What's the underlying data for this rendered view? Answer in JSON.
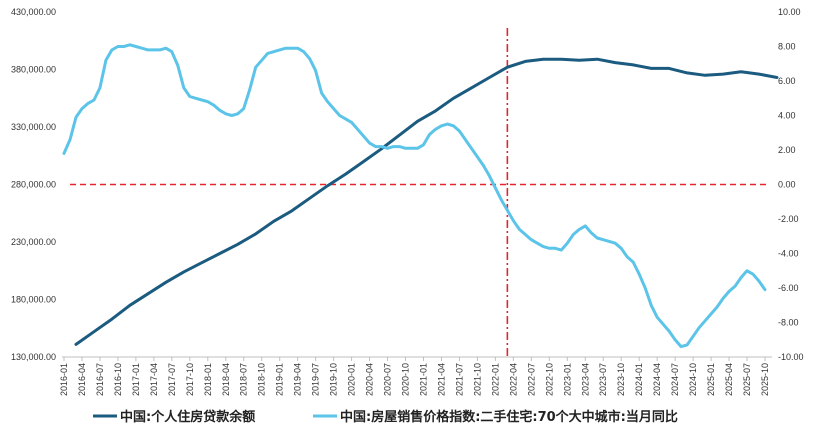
{
  "chart_data": {
    "type": "line",
    "title": "",
    "xlabel": "",
    "ylabel_left": "",
    "ylabel_right": "",
    "ylim_left": [
      130000,
      430000
    ],
    "ylim_right": [
      -10,
      10
    ],
    "left_ticks": [
      "130,000.00",
      "180,000.00",
      "230,000.00",
      "280,000.00",
      "330,000.00",
      "380,000.00",
      "430,000.00"
    ],
    "right_ticks": [
      "-10.00",
      "-8.00",
      "-6.00",
      "-4.00",
      "-2.00",
      "0.00",
      "2.00",
      "4.00",
      "6.00",
      "8.00",
      "10.00"
    ],
    "x_tick_labels": [
      "2016-01",
      "2016-04",
      "2016-07",
      "2016-10",
      "2017-01",
      "2017-04",
      "2017-07",
      "2017-10",
      "2018-01",
      "2018-04",
      "2018-07",
      "2018-10",
      "2019-01",
      "2019-04",
      "2019-07",
      "2019-10",
      "2020-01",
      "2020-04",
      "2020-07",
      "2020-10",
      "2021-01",
      "2021-04",
      "2021-07",
      "2021-10",
      "2022-01",
      "2022-04",
      "2022-07",
      "2022-10",
      "2023-01",
      "2023-04",
      "2023-07",
      "2023-10",
      "2024-01",
      "2024-04",
      "2024-07",
      "2024-10",
      "2025-01",
      "2025-04",
      "2025-07",
      "2025-10"
    ],
    "grid": false,
    "legend_position": "bottom",
    "reference_lines": [
      {
        "axis": "y_right",
        "value": 0,
        "color": "#e3262e",
        "style": "dashed"
      },
      {
        "axis": "x",
        "value": "2022-03",
        "color": "#e3262e",
        "style": "dash-dot"
      }
    ],
    "series": [
      {
        "name": "中国:个人住房贷款余额",
        "axis": "left",
        "color": "#1b5b7f",
        "points": [
          [
            "2016-03",
            141000
          ],
          [
            "2016-06",
            152000
          ],
          [
            "2016-09",
            163000
          ],
          [
            "2016-12",
            175000
          ],
          [
            "2017-03",
            185000
          ],
          [
            "2017-06",
            195000
          ],
          [
            "2017-09",
            204000
          ],
          [
            "2017-12",
            212000
          ],
          [
            "2018-03",
            220000
          ],
          [
            "2018-06",
            228000
          ],
          [
            "2018-09",
            237000
          ],
          [
            "2018-12",
            248000
          ],
          [
            "2019-03",
            257000
          ],
          [
            "2019-06",
            268000
          ],
          [
            "2019-09",
            279000
          ],
          [
            "2019-12",
            289000
          ],
          [
            "2020-03",
            300000
          ],
          [
            "2020-06",
            311000
          ],
          [
            "2020-09",
            323000
          ],
          [
            "2020-12",
            335000
          ],
          [
            "2021-03",
            344000
          ],
          [
            "2021-06",
            355000
          ],
          [
            "2021-09",
            364000
          ],
          [
            "2021-12",
            373000
          ],
          [
            "2022-03",
            382000
          ],
          [
            "2022-06",
            387000
          ],
          [
            "2022-09",
            389000
          ],
          [
            "2022-12",
            389000
          ],
          [
            "2023-03",
            388000
          ],
          [
            "2023-06",
            389000
          ],
          [
            "2023-09",
            386000
          ],
          [
            "2023-12",
            384000
          ],
          [
            "2024-03",
            381000
          ],
          [
            "2024-06",
            381000
          ],
          [
            "2024-09",
            377000
          ],
          [
            "2024-12",
            375000
          ],
          [
            "2025-03",
            376000
          ],
          [
            "2025-06",
            378000
          ],
          [
            "2025-09",
            376000
          ],
          [
            "2025-12",
            373000
          ]
        ]
      },
      {
        "name": "中国:房屋销售价格指数:二手住宅:70个大中城市:当月同比",
        "axis": "right",
        "color": "#5bc4e8",
        "points": [
          [
            "2016-01",
            1.8
          ],
          [
            "2016-02",
            2.6
          ],
          [
            "2016-03",
            3.9
          ],
          [
            "2016-04",
            4.4
          ],
          [
            "2016-05",
            4.7
          ],
          [
            "2016-06",
            4.9
          ],
          [
            "2016-07",
            5.6
          ],
          [
            "2016-08",
            7.2
          ],
          [
            "2016-09",
            7.8
          ],
          [
            "2016-10",
            8.0
          ],
          [
            "2016-11",
            8.0
          ],
          [
            "2016-12",
            8.1
          ],
          [
            "2017-01",
            8.0
          ],
          [
            "2017-02",
            7.9
          ],
          [
            "2017-03",
            7.8
          ],
          [
            "2017-04",
            7.8
          ],
          [
            "2017-05",
            7.8
          ],
          [
            "2017-06",
            7.9
          ],
          [
            "2017-07",
            7.7
          ],
          [
            "2017-08",
            6.9
          ],
          [
            "2017-09",
            5.6
          ],
          [
            "2017-10",
            5.1
          ],
          [
            "2017-11",
            5.0
          ],
          [
            "2017-12",
            4.9
          ],
          [
            "2018-01",
            4.8
          ],
          [
            "2018-02",
            4.6
          ],
          [
            "2018-03",
            4.3
          ],
          [
            "2018-04",
            4.1
          ],
          [
            "2018-05",
            4.0
          ],
          [
            "2018-06",
            4.1
          ],
          [
            "2018-07",
            4.4
          ],
          [
            "2018-08",
            5.5
          ],
          [
            "2018-09",
            6.8
          ],
          [
            "2018-10",
            7.2
          ],
          [
            "2018-11",
            7.6
          ],
          [
            "2018-12",
            7.7
          ],
          [
            "2019-01",
            7.8
          ],
          [
            "2019-02",
            7.9
          ],
          [
            "2019-03",
            7.9
          ],
          [
            "2019-04",
            7.9
          ],
          [
            "2019-05",
            7.7
          ],
          [
            "2019-06",
            7.3
          ],
          [
            "2019-07",
            6.6
          ],
          [
            "2019-08",
            5.3
          ],
          [
            "2019-09",
            4.8
          ],
          [
            "2019-10",
            4.4
          ],
          [
            "2019-11",
            4.0
          ],
          [
            "2019-12",
            3.8
          ],
          [
            "2020-01",
            3.6
          ],
          [
            "2020-02",
            3.2
          ],
          [
            "2020-03",
            2.8
          ],
          [
            "2020-04",
            2.4
          ],
          [
            "2020-05",
            2.2
          ],
          [
            "2020-06",
            2.2
          ],
          [
            "2020-07",
            2.1
          ],
          [
            "2020-08",
            2.2
          ],
          [
            "2020-09",
            2.2
          ],
          [
            "2020-10",
            2.1
          ],
          [
            "2020-11",
            2.1
          ],
          [
            "2020-12",
            2.1
          ],
          [
            "2021-01",
            2.3
          ],
          [
            "2021-02",
            2.9
          ],
          [
            "2021-03",
            3.2
          ],
          [
            "2021-04",
            3.4
          ],
          [
            "2021-05",
            3.5
          ],
          [
            "2021-06",
            3.4
          ],
          [
            "2021-07",
            3.1
          ],
          [
            "2021-08",
            2.6
          ],
          [
            "2021-09",
            2.1
          ],
          [
            "2021-10",
            1.6
          ],
          [
            "2021-11",
            1.1
          ],
          [
            "2021-12",
            0.5
          ],
          [
            "2022-01",
            -0.2
          ],
          [
            "2022-02",
            -0.9
          ],
          [
            "2022-03",
            -1.5
          ],
          [
            "2022-04",
            -2.1
          ],
          [
            "2022-05",
            -2.6
          ],
          [
            "2022-06",
            -2.9
          ],
          [
            "2022-07",
            -3.2
          ],
          [
            "2022-08",
            -3.4
          ],
          [
            "2022-09",
            -3.6
          ],
          [
            "2022-10",
            -3.7
          ],
          [
            "2022-11",
            -3.7
          ],
          [
            "2022-12",
            -3.8
          ],
          [
            "2023-01",
            -3.4
          ],
          [
            "2023-02",
            -2.9
          ],
          [
            "2023-03",
            -2.6
          ],
          [
            "2023-04",
            -2.4
          ],
          [
            "2023-05",
            -2.8
          ],
          [
            "2023-06",
            -3.1
          ],
          [
            "2023-07",
            -3.2
          ],
          [
            "2023-08",
            -3.3
          ],
          [
            "2023-09",
            -3.4
          ],
          [
            "2023-10",
            -3.7
          ],
          [
            "2023-11",
            -4.2
          ],
          [
            "2023-12",
            -4.5
          ],
          [
            "2024-01",
            -5.2
          ],
          [
            "2024-02",
            -6.0
          ],
          [
            "2024-03",
            -7.0
          ],
          [
            "2024-04",
            -7.7
          ],
          [
            "2024-05",
            -8.1
          ],
          [
            "2024-06",
            -8.5
          ],
          [
            "2024-07",
            -9.0
          ],
          [
            "2024-08",
            -9.4
          ],
          [
            "2024-09",
            -9.3
          ],
          [
            "2024-10",
            -8.8
          ],
          [
            "2024-11",
            -8.3
          ],
          [
            "2024-12",
            -7.9
          ],
          [
            "2025-01",
            -7.5
          ],
          [
            "2025-02",
            -7.1
          ],
          [
            "2025-03",
            -6.6
          ],
          [
            "2025-04",
            -6.2
          ],
          [
            "2025-05",
            -5.9
          ],
          [
            "2025-06",
            -5.4
          ],
          [
            "2025-07",
            -5.0
          ],
          [
            "2025-08",
            -5.2
          ],
          [
            "2025-09",
            -5.6
          ],
          [
            "2025-10",
            -6.1
          ]
        ]
      }
    ]
  }
}
